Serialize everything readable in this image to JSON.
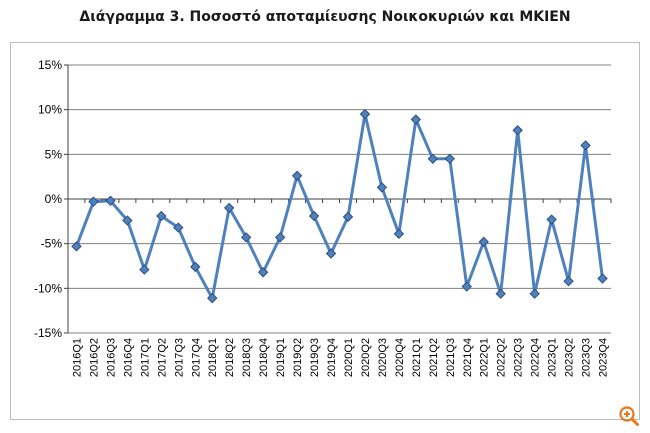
{
  "title": "Διάγραμμα 3. Ποσοστό αποταμίευσης Νοικοκυριών και ΜΚΙΕΝ",
  "zoom_icon": "zoom-in-icon",
  "colors": {
    "line": "#4f81bd",
    "marker": "#2f4f7f",
    "grid": "#808080",
    "axis": "#404040"
  },
  "chart_data": {
    "type": "line",
    "categories": [
      "2016Q1",
      "2016Q2",
      "2016Q3",
      "2016Q4",
      "2017Q1",
      "2017Q2",
      "2017Q3",
      "2017Q4",
      "2018Q1",
      "2018Q2",
      "2018Q3",
      "2018Q4",
      "2019Q1",
      "2019Q2",
      "2019Q3",
      "2019Q4",
      "2020Q1",
      "2020Q2",
      "2020Q3",
      "2020Q4",
      "2021Q1",
      "2021Q2",
      "2021Q3",
      "2021Q4",
      "2022Q1",
      "2022Q2",
      "2022Q3",
      "2022Q4",
      "2023Q1",
      "2023Q2",
      "2023Q3",
      "2023Q4"
    ],
    "series": [
      {
        "values": [
          -5.3,
          -0.3,
          -0.2,
          -2.4,
          -7.9,
          -1.9,
          -3.2,
          -7.6,
          -11.1,
          -1.0,
          -4.3,
          -8.2,
          -4.3,
          2.6,
          -1.9,
          -6.1,
          -2.0,
          9.5,
          1.3,
          -3.9,
          8.9,
          4.5,
          4.5,
          -9.8,
          -4.8,
          -10.6,
          7.7,
          -10.6,
          -2.3,
          -9.2,
          6.0,
          -8.9
        ]
      }
    ],
    "ylim": [
      -15,
      15
    ],
    "yticks": [
      -15,
      -10,
      -5,
      0,
      5,
      10,
      15
    ],
    "ytick_labels": [
      "-15%",
      "-10%",
      "-5%",
      "0%",
      "5%",
      "10%",
      "15%"
    ],
    "grid": true,
    "legend": "none"
  }
}
